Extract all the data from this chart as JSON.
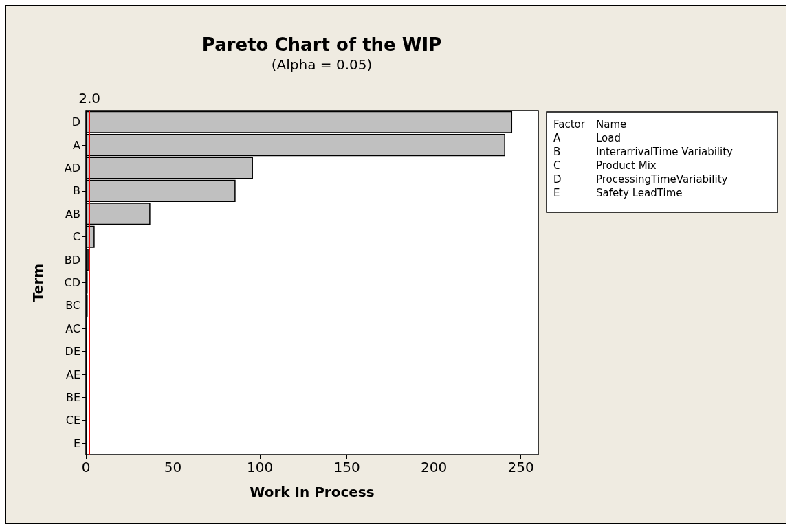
{
  "chart_data": {
    "type": "bar",
    "orientation": "horizontal",
    "title": "Pareto Chart of the WIP",
    "subtitle": "(Alpha = 0.05)",
    "xlabel": "Work In Process",
    "ylabel": "Term",
    "categories": [
      "D",
      "A",
      "AD",
      "B",
      "AB",
      "C",
      "BD",
      "CD",
      "BC",
      "AC",
      "DE",
      "AE",
      "BE",
      "CE",
      "E"
    ],
    "values": [
      245,
      241,
      96,
      86,
      37,
      5,
      1.5,
      1,
      1,
      0,
      0,
      0,
      0,
      0,
      0
    ],
    "color": "#c0c0c0",
    "xlim": [
      0,
      260
    ],
    "xticks": [
      0,
      50,
      100,
      150,
      200,
      250
    ],
    "grid": false,
    "ref_lines": [
      {
        "axis": "x",
        "value": 2.0,
        "label": "2.0",
        "color": "#ff0000"
      }
    ],
    "annotations": [
      "Factor Name",
      "A Load",
      "B InterarrivalTime Variability",
      "C Product Mix",
      "D ProcessingTimeVariability",
      "E Safety LeadTime"
    ]
  }
}
